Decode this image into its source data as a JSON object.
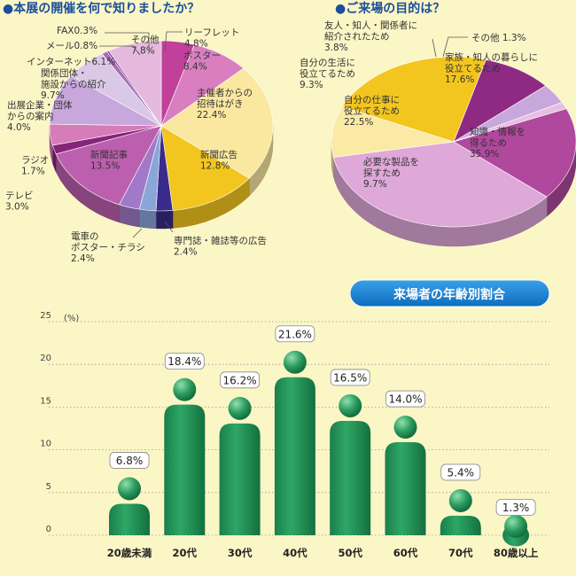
{
  "chart_data": [
    {
      "type": "pie",
      "title": "●本展の開催を何で知りましたか？",
      "slices": [
        {
          "name": "リーフレット",
          "value": 4.8,
          "color": "#c0409a"
        },
        {
          "name": "ポスター",
          "value": 8.4,
          "color": "#d97fc0"
        },
        {
          "name": "主催者からの招待はがき",
          "value": 22.4,
          "color": "#fbe8a0"
        },
        {
          "name": "新聞広告",
          "value": 12.8,
          "color": "#f3c61f"
        },
        {
          "name": "専門誌・雑誌等の広告",
          "value": 2.4,
          "color": "#3a2a8a"
        },
        {
          "name": "電車のポスター・チラシ",
          "value": 2.4,
          "color": "#8aa6d8"
        },
        {
          "name": "テレビ",
          "value": 3.0,
          "color": "#a07ac8"
        },
        {
          "name": "新聞記事",
          "value": 13.5,
          "color": "#bc5fae"
        },
        {
          "name": "ラジオ",
          "value": 1.7,
          "color": "#86247a"
        },
        {
          "name": "出展企業・団体からの案内",
          "value": 4.0,
          "color": "#d67cb8"
        },
        {
          "name": "関係団体・施設からの紹介",
          "value": 9.7,
          "color": "#c8a7dc"
        },
        {
          "name": "インターネット",
          "value": 6.1,
          "color": "#d9c8e6"
        },
        {
          "name": "メール",
          "value": 0.8,
          "color": "#a86ab5"
        },
        {
          "name": "FAX",
          "value": 0.3,
          "color": "#7c3c92"
        },
        {
          "name": "その他",
          "value": 7.8,
          "color": "#e5b8de"
        }
      ],
      "labels": [
        {
          "l1": "リーフレット",
          "l2": "4.8%"
        },
        {
          "l1": "ポスター",
          "l2": "8.4%"
        },
        {
          "l1": "主催者からの",
          "l2": "招待はがき",
          "l3": "22.4%"
        },
        {
          "l1": "新聞広告",
          "l2": "12.8%"
        },
        {
          "l1": "専門誌・雑誌等の広告",
          "l2": "2.4%"
        },
        {
          "l1": "電車の",
          "l2": "ポスター・チラシ",
          "l3": "2.4%"
        },
        {
          "l1": "テレビ",
          "l2": "3.0%"
        },
        {
          "l1": "新聞記事",
          "l2": "13.5%"
        },
        {
          "l1": "ラジオ",
          "l2": "1.7%"
        },
        {
          "l1": "出展企業・団体",
          "l2": "からの案内",
          "l3": "4.0%"
        },
        {
          "l1": "関係団体・",
          "l2": "施設からの紹介",
          "l3": "9.7%"
        },
        {
          "l1": "インターネット6.1%"
        },
        {
          "l1": "メール0.8%"
        },
        {
          "l1": "FAX0.3%"
        },
        {
          "l1": "その他",
          "l2": "7.8%"
        }
      ]
    },
    {
      "type": "pie",
      "title": "●ご来場の目的は？",
      "slices": [
        {
          "name": "家族・知人の暮らしに役立てるため",
          "value": 17.6,
          "color": "#b0489e"
        },
        {
          "name": "知識・情報を得るため",
          "value": 35.9,
          "color": "#dea8d8"
        },
        {
          "name": "必要な製品を探すため",
          "value": 9.7,
          "color": "#fbeaa6"
        },
        {
          "name": "自分の仕事に役立てるため",
          "value": 22.5,
          "color": "#f3c61f"
        },
        {
          "name": "自分の生活に役立てるため",
          "value": 9.3,
          "color": "#8e2a82"
        },
        {
          "name": "友人・知人・関係者に紹介されたため",
          "value": 3.8,
          "color": "#c8a7dc"
        },
        {
          "name": "その他",
          "value": 1.3,
          "color": "#e6c0e2"
        }
      ],
      "labels": [
        {
          "l1": "家族・知人の暮らしに",
          "l2": "役立てるため",
          "l3": "17.6%"
        },
        {
          "l1": "知識・情報を",
          "l2": "得るため",
          "l3": "35.9%"
        },
        {
          "l1": "必要な製品を",
          "l2": "探すため",
          "l3": "9.7%"
        },
        {
          "l1": "自分の仕事に",
          "l2": "役立てるため",
          "l3": "22.5%"
        },
        {
          "l1": "自分の生活に",
          "l2": "役立てるため",
          "l3": "9.3%"
        },
        {
          "l1": "友人・知人・関係者に",
          "l2": "紹介されたため",
          "l3": "3.8%"
        },
        {
          "l1": "その他 1.3%"
        }
      ]
    },
    {
      "type": "bar",
      "title": "来場者の年齢別割合",
      "ylabel": "(%)",
      "ylim": [
        0,
        25
      ],
      "yticks": [
        0,
        5,
        10,
        15,
        20,
        25
      ],
      "categories": [
        "20歳未満",
        "20代",
        "30代",
        "40代",
        "50代",
        "60代",
        "70代",
        "80歳以上"
      ],
      "values": [
        6.8,
        18.4,
        16.2,
        21.6,
        16.5,
        14.0,
        5.4,
        1.3
      ],
      "value_labels": [
        "6.8%",
        "18.4%",
        "16.2%",
        "21.6%",
        "16.5%",
        "14.0%",
        "5.4%",
        "1.3%"
      ],
      "bar_color": "#1f8f57"
    }
  ]
}
